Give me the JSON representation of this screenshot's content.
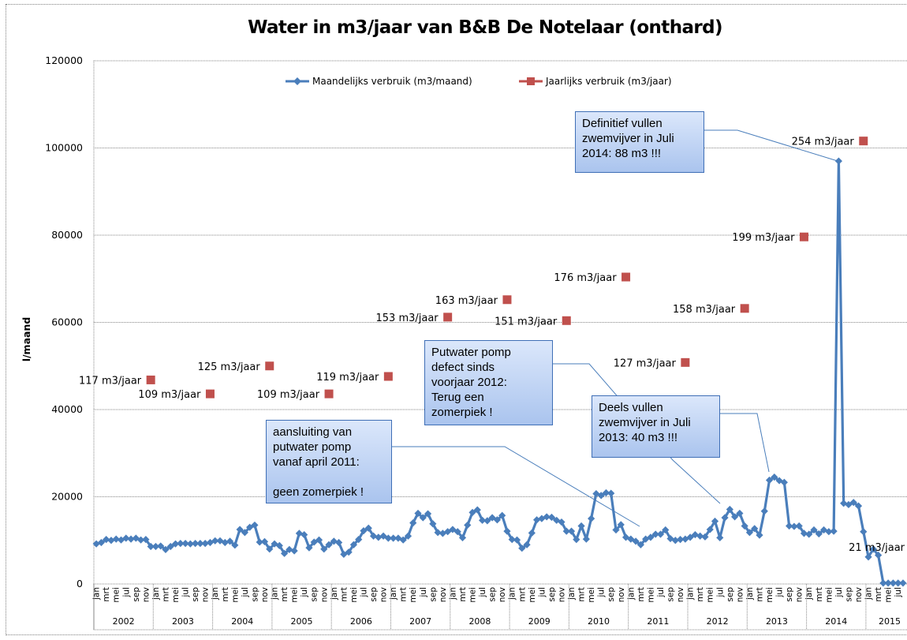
{
  "chart_data": {
    "type": "line",
    "title": "Water in m3/jaar van B&B De Notelaar (onthard)",
    "xlabel": "",
    "ylabel": "l/maand",
    "ylim": [
      0,
      120000
    ],
    "y_ticks": [
      0,
      20000,
      40000,
      60000,
      80000,
      100000,
      120000
    ],
    "y_tick_labels": [
      "0",
      "20000",
      "40000",
      "60000",
      "80000",
      "100000",
      "120000"
    ],
    "grid": "horizontal",
    "legend_position": "top-center",
    "month_labels": [
      "jan",
      "mrt",
      "mei",
      "jul",
      "sep",
      "nov"
    ],
    "years": [
      "2002",
      "2003",
      "2004",
      "2005",
      "2006",
      "2007",
      "2008",
      "2009",
      "2010",
      "2011",
      "2012",
      "2013",
      "2014",
      "2015"
    ],
    "series": [
      {
        "name": "Maandelijks verbruik (m3/maand)",
        "color": "#4a7ebb",
        "marker": "diamond",
        "values": [
          9200,
          9500,
          10200,
          10000,
          10300,
          10100,
          10500,
          10300,
          10500,
          10100,
          10200,
          8600,
          8600,
          8700,
          7900,
          8600,
          9200,
          9300,
          9300,
          9200,
          9300,
          9300,
          9300,
          9500,
          9900,
          9900,
          9500,
          9800,
          8900,
          12500,
          11800,
          13000,
          13500,
          9600,
          9700,
          8000,
          9200,
          8800,
          7000,
          7900,
          7600,
          11600,
          11300,
          8300,
          9600,
          10100,
          8000,
          9000,
          9800,
          9500,
          6800,
          7300,
          9000,
          10200,
          12200,
          12800,
          11000,
          10700,
          11000,
          10500,
          10500,
          10500,
          10100,
          11000,
          14000,
          16200,
          15200,
          16100,
          13800,
          11800,
          11600,
          12000,
          12500,
          12000,
          10600,
          13500,
          16400,
          17000,
          14600,
          14500,
          15200,
          14700,
          15700,
          12100,
          10200,
          10100,
          8200,
          9000,
          11700,
          14700,
          15000,
          15400,
          15300,
          14600,
          14200,
          12100,
          12100,
          10200,
          13300,
          10300,
          15000,
          20700,
          20300,
          20900,
          20800,
          12400,
          13600,
          10700,
          10300,
          9800,
          9000,
          10300,
          10700,
          11400,
          11400,
          12400,
          10400,
          10000,
          10200,
          10300,
          10700,
          11300,
          11000,
          10800,
          12500,
          14400,
          10600,
          15200,
          17100,
          15400,
          16200,
          13300,
          11800,
          12700,
          11200,
          16700,
          23800,
          24500,
          23700,
          23300,
          13300,
          13200,
          13300,
          11600,
          11400,
          12400,
          11500,
          12400,
          12000,
          12100,
          97000,
          18500,
          18200,
          18700,
          17900,
          12000,
          6200,
          8000,
          6600,
          200,
          200,
          200,
          200,
          200
        ]
      },
      {
        "name": "Jaarlijks verbruik (m3/jaar)",
        "color": "#c0504d",
        "marker": "square",
        "points": [
          {
            "year": "2002",
            "m3": 117,
            "value": 46800,
            "label": "117 m3/jaar"
          },
          {
            "year": "2003",
            "m3": 109,
            "value": 43600,
            "label": "109 m3/jaar"
          },
          {
            "year": "2004",
            "m3": 125,
            "value": 50000,
            "label": "125 m3/jaar"
          },
          {
            "year": "2005",
            "m3": 109,
            "value": 43600,
            "label": "109 m3/jaar"
          },
          {
            "year": "2006",
            "m3": 119,
            "value": 47600,
            "label": "119 m3/jaar"
          },
          {
            "year": "2007",
            "m3": 153,
            "value": 61200,
            "label": "153 m3/jaar"
          },
          {
            "year": "2008",
            "m3": 163,
            "value": 65200,
            "label": "163 m3/jaar"
          },
          {
            "year": "2009",
            "m3": 151,
            "value": 60400,
            "label": "151 m3/jaar"
          },
          {
            "year": "2010",
            "m3": 176,
            "value": 70400,
            "label": "176 m3/jaar"
          },
          {
            "year": "2011",
            "m3": 127,
            "value": 50800,
            "label": "127 m3/jaar"
          },
          {
            "year": "2012",
            "m3": 158,
            "value": 63200,
            "label": "158 m3/jaar"
          },
          {
            "year": "2013",
            "m3": 199,
            "value": 79600,
            "label": "199 m3/jaar"
          },
          {
            "year": "2014",
            "m3": 254,
            "value": 101600,
            "label": "254 m3/jaar"
          }
        ]
      }
    ],
    "extra_labels": [
      {
        "text": "21 m3/jaar",
        "year": "2015",
        "month_index": 2,
        "value": 8500
      }
    ],
    "annotations": [
      {
        "id": "callout-2011",
        "text": "aansluiting van\nputwater pomp\nvanaf april 2011:\n\ngeen zomerpiek !",
        "points_to": {
          "month_index": 9,
          "year": "2011"
        }
      },
      {
        "id": "callout-2012",
        "text": "Putwater pomp\ndefect sinds\nvoorjaar 2012:\nTerug een\nzomerpiek !",
        "points_to": {
          "month_index": 8,
          "year": "2012"
        }
      },
      {
        "id": "callout-2013",
        "text": "Deels vullen\nzwemvijver  in Juli\n2013: 40 m3 !!!",
        "points_to": {
          "month_index": 5,
          "year": "2013"
        }
      },
      {
        "id": "callout-2014",
        "text": "Definitief vullen\nzwemvijver  in Juli\n2014: 88 m3 !!!",
        "points_to": {
          "month_index": 6,
          "year": "2014"
        }
      }
    ]
  }
}
